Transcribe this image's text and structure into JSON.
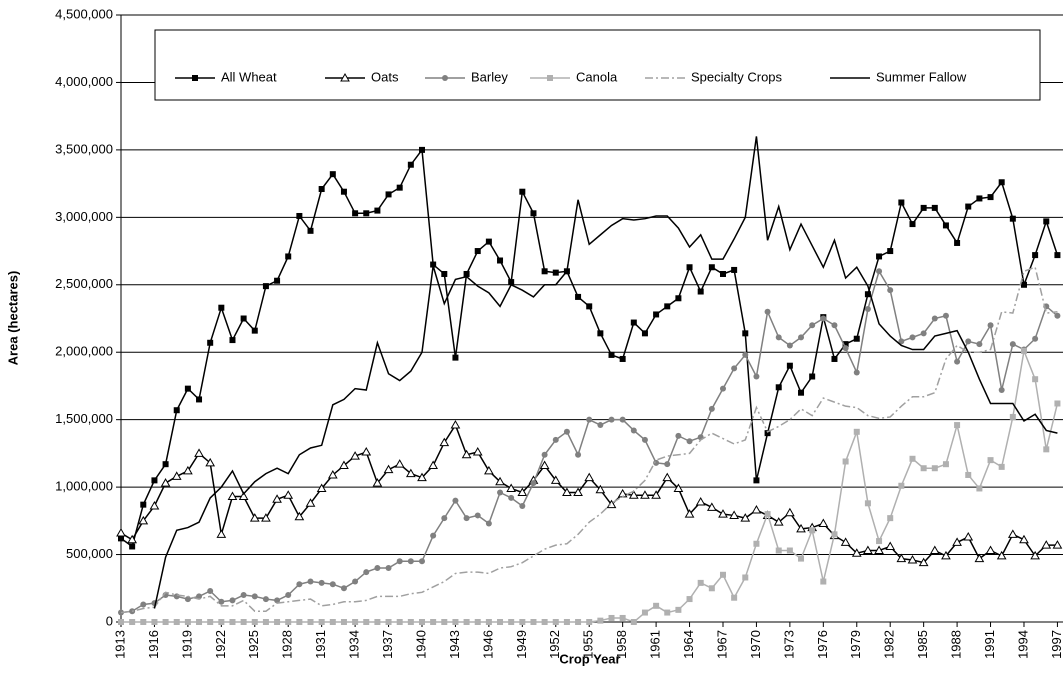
{
  "chart_data": {
    "type": "line",
    "x_label": "Crop Year",
    "y_label": "Area (hectares)",
    "x": [
      1913,
      1914,
      1915,
      1916,
      1917,
      1918,
      1919,
      1920,
      1921,
      1922,
      1923,
      1924,
      1925,
      1926,
      1927,
      1928,
      1929,
      1930,
      1931,
      1932,
      1933,
      1934,
      1935,
      1936,
      1937,
      1938,
      1939,
      1940,
      1941,
      1942,
      1943,
      1944,
      1945,
      1946,
      1947,
      1948,
      1949,
      1950,
      1951,
      1952,
      1953,
      1954,
      1955,
      1956,
      1957,
      1958,
      1959,
      1960,
      1961,
      1962,
      1963,
      1964,
      1965,
      1966,
      1967,
      1968,
      1969,
      1970,
      1971,
      1972,
      1973,
      1974,
      1975,
      1976,
      1977,
      1978,
      1979,
      1980,
      1981,
      1982,
      1983,
      1984,
      1985,
      1986,
      1987,
      1988,
      1989,
      1990,
      1991,
      1992,
      1993,
      1994,
      1995,
      1996,
      1997
    ],
    "xlim": [
      1913,
      1997.5
    ],
    "xticks": [
      1913,
      1916,
      1919,
      1922,
      1925,
      1928,
      1931,
      1934,
      1937,
      1940,
      1943,
      1946,
      1949,
      1952,
      1955,
      1958,
      1961,
      1964,
      1967,
      1970,
      1973,
      1976,
      1979,
      1982,
      1985,
      1988,
      1991,
      1994,
      1997
    ],
    "ylim": [
      0,
      4500000
    ],
    "yticks": [
      0,
      {
        "value": 500000,
        "label": "500,000"
      },
      {
        "value": 1000000,
        "label": "1,000,000"
      },
      {
        "value": 1500000,
        "label": "1,500,000"
      },
      {
        "value": 2000000,
        "label": "2,000,000"
      },
      {
        "value": 2500000,
        "label": "2,500,000"
      },
      {
        "value": 3000000,
        "label": "3,000,000"
      },
      {
        "value": 3500000,
        "label": "3,500,000"
      },
      {
        "value": 4000000,
        "label": "4,000,000"
      },
      {
        "value": 4500000,
        "label": "4,500,000"
      }
    ],
    "grid": true,
    "legend": "top",
    "series": [
      {
        "name": "All Wheat",
        "color": "#000000",
        "marker": "square",
        "dash": "solid",
        "values": [
          620000,
          560000,
          870000,
          1050000,
          1170000,
          1570000,
          1730000,
          1650000,
          2070000,
          2330000,
          2090000,
          2250000,
          2160000,
          2490000,
          2530000,
          2710000,
          3010000,
          2900000,
          3210000,
          3320000,
          3190000,
          3030000,
          3030000,
          3050000,
          3170000,
          3220000,
          3390000,
          3500000,
          2650000,
          2580000,
          1960000,
          2580000,
          2750000,
          2820000,
          2680000,
          2520000,
          3190000,
          3030000,
          2600000,
          2590000,
          2600000,
          2410000,
          2340000,
          2140000,
          1980000,
          1950000,
          2220000,
          2140000,
          2280000,
          2340000,
          2400000,
          2630000,
          2450000,
          2630000,
          2580000,
          2610000,
          2140000,
          1050000,
          1400000,
          1740000,
          1900000,
          1700000,
          1820000,
          2260000,
          1950000,
          2060000,
          2100000,
          2430000,
          2710000,
          2750000,
          3110000,
          2950000,
          3070000,
          3070000,
          2940000,
          2810000,
          3080000,
          3140000,
          3150000,
          3260000,
          2990000,
          2500000,
          2720000,
          2970000,
          2720000
        ]
      },
      {
        "name": "Oats",
        "color": "#000000",
        "marker": "triangle",
        "dash": "solid",
        "values": [
          660000,
          610000,
          750000,
          860000,
          1030000,
          1080000,
          1120000,
          1250000,
          1180000,
          650000,
          930000,
          930000,
          770000,
          770000,
          910000,
          940000,
          780000,
          880000,
          990000,
          1090000,
          1160000,
          1230000,
          1260000,
          1030000,
          1130000,
          1170000,
          1100000,
          1070000,
          1160000,
          1330000,
          1460000,
          1240000,
          1260000,
          1120000,
          1040000,
          990000,
          960000,
          1050000,
          1160000,
          1050000,
          960000,
          960000,
          1070000,
          980000,
          870000,
          950000,
          940000,
          940000,
          940000,
          1070000,
          990000,
          800000,
          890000,
          850000,
          800000,
          790000,
          770000,
          830000,
          790000,
          740000,
          810000,
          690000,
          700000,
          730000,
          640000,
          590000,
          510000,
          530000,
          530000,
          560000,
          470000,
          460000,
          440000,
          530000,
          490000,
          590000,
          630000,
          470000,
          530000,
          490000,
          650000,
          610000,
          490000,
          570000,
          570000
        ]
      },
      {
        "name": "Barley",
        "color": "#808080",
        "marker": "circle",
        "dash": "solid",
        "values": [
          70000,
          80000,
          130000,
          140000,
          200000,
          190000,
          170000,
          190000,
          230000,
          150000,
          160000,
          200000,
          190000,
          170000,
          160000,
          200000,
          280000,
          300000,
          290000,
          280000,
          250000,
          300000,
          370000,
          400000,
          400000,
          450000,
          450000,
          450000,
          640000,
          770000,
          900000,
          770000,
          790000,
          730000,
          960000,
          920000,
          860000,
          1030000,
          1240000,
          1350000,
          1410000,
          1240000,
          1500000,
          1460000,
          1500000,
          1500000,
          1420000,
          1350000,
          1180000,
          1170000,
          1380000,
          1340000,
          1370000,
          1580000,
          1730000,
          1880000,
          1980000,
          1820000,
          2300000,
          2110000,
          2050000,
          2110000,
          2200000,
          2250000,
          2200000,
          2030000,
          1850000,
          2320000,
          2600000,
          2460000,
          2080000,
          2110000,
          2140000,
          2250000,
          2270000,
          1930000,
          2080000,
          2060000,
          2200000,
          1720000,
          2060000,
          2020000,
          2100000,
          2340000,
          2270000
        ]
      },
      {
        "name": "Canola",
        "color": "#b0b0b0",
        "marker": "square",
        "dash": "solid",
        "values": [
          0,
          0,
          0,
          0,
          0,
          0,
          0,
          0,
          0,
          0,
          0,
          0,
          0,
          0,
          0,
          0,
          0,
          0,
          0,
          0,
          0,
          0,
          0,
          0,
          0,
          0,
          0,
          0,
          0,
          0,
          0,
          0,
          0,
          0,
          0,
          0,
          0,
          0,
          0,
          0,
          0,
          0,
          0,
          10000,
          30000,
          30000,
          0,
          70000,
          120000,
          70000,
          90000,
          170000,
          290000,
          250000,
          350000,
          180000,
          330000,
          580000,
          800000,
          530000,
          530000,
          470000,
          680000,
          300000,
          650000,
          1190000,
          1410000,
          880000,
          600000,
          770000,
          1010000,
          1210000,
          1140000,
          1140000,
          1170000,
          1460000,
          1090000,
          990000,
          1200000,
          1150000,
          1520000,
          2010000,
          1800000,
          1280000,
          1620000
        ]
      },
      {
        "name": "Specialty Crops",
        "color": "#a0a0a0",
        "marker": "none",
        "dash": "dashdot",
        "values": [
          70000,
          80000,
          100000,
          110000,
          220000,
          200000,
          190000,
          170000,
          190000,
          120000,
          120000,
          160000,
          80000,
          80000,
          140000,
          150000,
          160000,
          170000,
          120000,
          130000,
          150000,
          150000,
          160000,
          190000,
          190000,
          190000,
          210000,
          220000,
          260000,
          300000,
          360000,
          370000,
          370000,
          360000,
          400000,
          410000,
          440000,
          490000,
          540000,
          570000,
          580000,
          650000,
          740000,
          800000,
          880000,
          930000,
          970000,
          1050000,
          1200000,
          1230000,
          1240000,
          1250000,
          1350000,
          1400000,
          1360000,
          1320000,
          1350000,
          1590000,
          1410000,
          1450000,
          1500000,
          1580000,
          1530000,
          1660000,
          1630000,
          1600000,
          1590000,
          1530000,
          1510000,
          1520000,
          1600000,
          1670000,
          1670000,
          1700000,
          1950000,
          2050000,
          2000000,
          2000000,
          2020000,
          2300000,
          2290000,
          2600000,
          2630000,
          2290000,
          2300000
        ]
      },
      {
        "name": "Summer Fallow",
        "color": "#000000",
        "marker": "none",
        "dash": "solid",
        "values": [
          null,
          null,
          null,
          100000,
          480000,
          680000,
          700000,
          740000,
          920000,
          1000000,
          1120000,
          950000,
          1040000,
          1100000,
          1140000,
          1100000,
          1240000,
          1290000,
          1310000,
          1610000,
          1650000,
          1730000,
          1720000,
          2070000,
          1840000,
          1790000,
          1860000,
          2000000,
          2640000,
          2360000,
          2540000,
          2560000,
          2490000,
          2440000,
          2340000,
          2500000,
          2460000,
          2410000,
          2500000,
          2500000,
          2600000,
          3130000,
          2800000,
          2870000,
          2940000,
          2990000,
          2980000,
          2990000,
          3010000,
          3010000,
          2920000,
          2780000,
          2870000,
          2690000,
          2690000,
          2840000,
          3000000,
          3600000,
          2830000,
          3080000,
          2760000,
          2950000,
          2790000,
          2630000,
          2830000,
          2550000,
          2630000,
          2490000,
          2210000,
          2120000,
          2050000,
          2020000,
          2020000,
          2120000,
          2140000,
          2160000,
          2000000,
          1800000,
          1620000,
          1620000,
          1620000,
          1490000,
          1540000,
          1420000,
          1400000
        ]
      }
    ]
  }
}
